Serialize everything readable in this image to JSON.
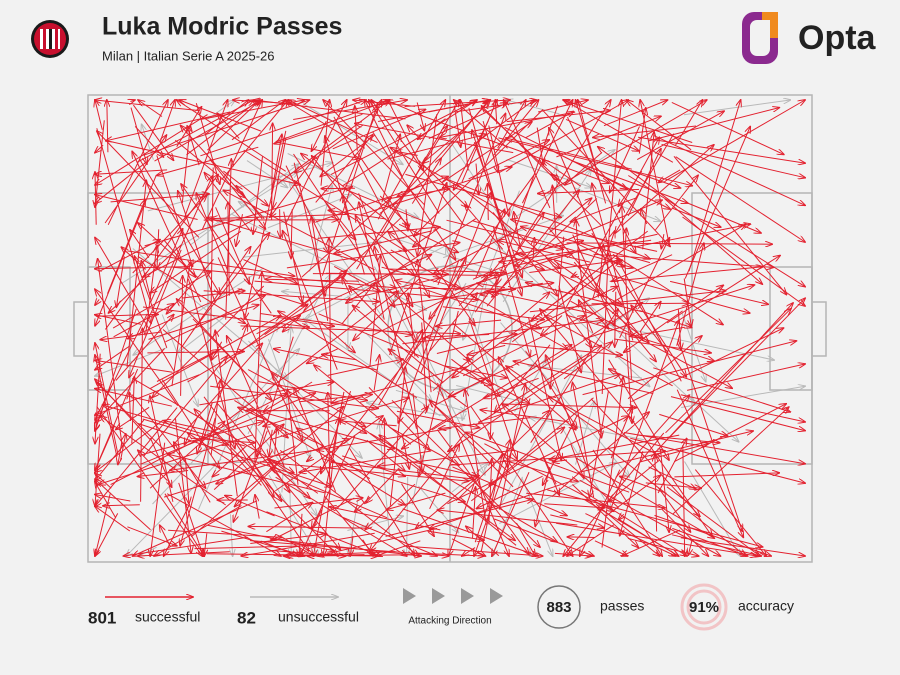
{
  "chart_data": {
    "type": "passmap",
    "title": "Luka Modric Passes",
    "subtitle": "Milan | Italian Serie A 2025-26",
    "brand": "Opta",
    "direction_label": "Attacking Direction",
    "series": [
      {
        "name": "successful",
        "color": "#e3212f",
        "count": 801
      },
      {
        "name": "unsuccessful",
        "color": "#b9b9b9",
        "count": 82
      }
    ],
    "stats": [
      {
        "name": "passes",
        "value": 883
      },
      {
        "name": "accuracy",
        "value": 91,
        "value_label": "91%"
      }
    ]
  }
}
